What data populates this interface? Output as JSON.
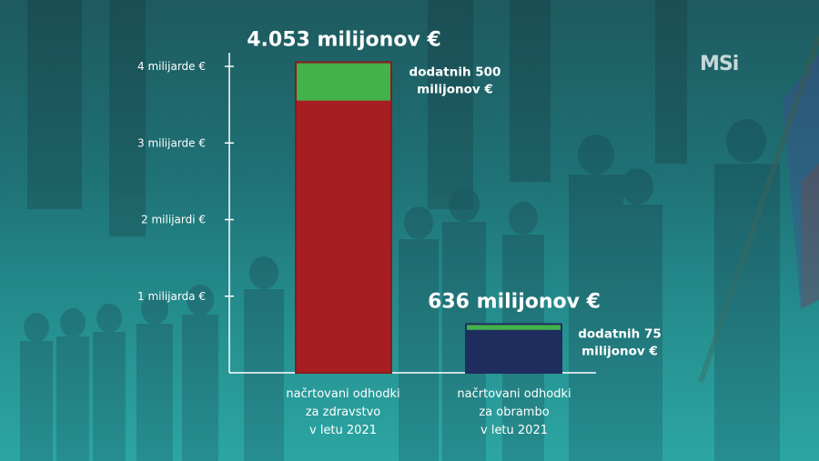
{
  "chart_data": {
    "type": "bar",
    "title": "",
    "xlabel": "",
    "ylabel": "",
    "ylim": [
      0,
      4000
    ],
    "yticks": [
      {
        "value": 1000,
        "label": "1 milijarda €"
      },
      {
        "value": 2000,
        "label": "2 milijardi €"
      },
      {
        "value": 3000,
        "label": "3 milijarde €"
      },
      {
        "value": 4000,
        "label": "4 milijarde €"
      }
    ],
    "categories": [
      {
        "lines": [
          "načrtovani odhodki",
          "za zdravstvo",
          "v letu 2021"
        ]
      },
      {
        "lines": [
          "načrtovani odhodki",
          "za obrambo",
          "v letu 2021"
        ]
      }
    ],
    "series": [
      {
        "values": [
          3553,
          561
        ],
        "color": "#a61e22"
      },
      {
        "values": [
          500,
          75
        ],
        "color": "#44b24a"
      }
    ],
    "totals": [
      4053,
      636
    ],
    "total_labels": [
      "4.053 milijonov €",
      "636 milijonov €"
    ],
    "extra_labels": [
      [
        "dodatnih 500",
        "milijonov €"
      ],
      [
        "dodatnih 75",
        "milijonov €"
      ]
    ],
    "second_bar_base_color": "#1e2d5e",
    "grid": false,
    "legend": "none"
  },
  "logo": {
    "text": "MSi"
  }
}
